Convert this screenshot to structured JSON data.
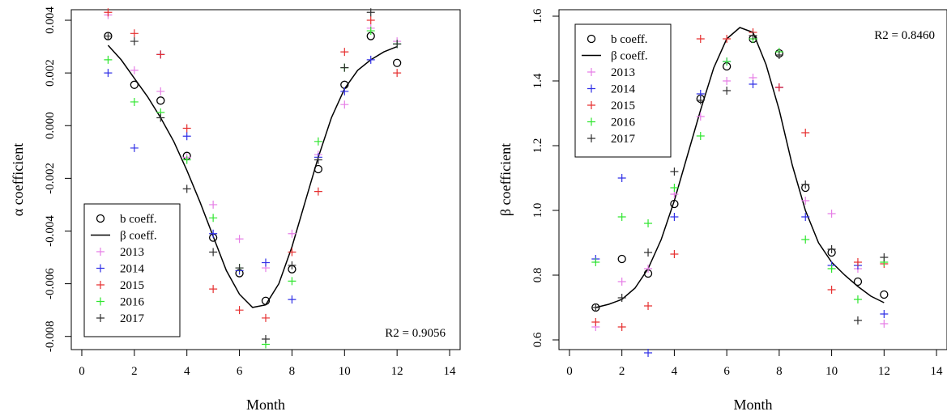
{
  "chart_data": [
    {
      "type": "scatter",
      "xlabel": "Month",
      "ylabel": "α coefficient",
      "xlim": [
        -0.4,
        14.4
      ],
      "ylim": [
        -0.0085,
        0.0044
      ],
      "x_ticks": [
        0,
        2,
        4,
        6,
        8,
        10,
        12,
        14
      ],
      "y_ticks": [
        -0.008,
        -0.006,
        -0.004,
        -0.002,
        0.0,
        0.002,
        0.004
      ],
      "y_tick_labels": [
        "-0.008",
        "-0.006",
        "-0.004",
        "-0.002",
        "0.000",
        "0.002",
        "0.004"
      ],
      "annotation": "R2 = 0.9056",
      "annotation_position": "bottom-right",
      "legend_position": "bottom-left",
      "grid": false,
      "series": [
        {
          "name": "b coeff.",
          "marker": "circle",
          "color": "#000000",
          "x": [
            1,
            2,
            3,
            4,
            5,
            6,
            7,
            8,
            9,
            10,
            11,
            12
          ],
          "y": [
            0.0034,
            0.00155,
            0.00095,
            -0.00115,
            -0.00425,
            -0.0056,
            -0.00665,
            -0.00545,
            -0.00165,
            0.00155,
            0.0034,
            0.00238
          ]
        },
        {
          "name": "β coeff.",
          "marker": "line",
          "color": "#000000",
          "x": [
            1,
            1.5,
            2,
            2.5,
            3,
            3.5,
            4,
            4.5,
            5,
            5.5,
            6,
            6.5,
            7,
            7.5,
            8,
            8.5,
            9,
            9.5,
            10,
            10.5,
            11,
            11.5,
            12
          ],
          "y": [
            0.00305,
            0.0025,
            0.0018,
            0.0011,
            0.0003,
            -0.0006,
            -0.0017,
            -0.0029,
            -0.0042,
            -0.0055,
            -0.0064,
            -0.0069,
            -0.0068,
            -0.006,
            -0.0046,
            -0.0029,
            -0.0012,
            0.0003,
            0.0014,
            0.0021,
            0.0025,
            0.0028,
            0.003
          ]
        },
        {
          "name": "2013",
          "marker": "plus",
          "color": "#e67ee6",
          "x": [
            1,
            2,
            3,
            4,
            5,
            6,
            7,
            8,
            9,
            10,
            11,
            12
          ],
          "y": [
            0.0042,
            0.0021,
            0.0013,
            -0.0012,
            -0.003,
            -0.0043,
            -0.0054,
            -0.0041,
            -0.0011,
            0.0008,
            0.0037,
            0.0032
          ]
        },
        {
          "name": "2014",
          "marker": "plus",
          "color": "#3030e6",
          "x": [
            1,
            2,
            3,
            4,
            5,
            6,
            7,
            8,
            9,
            10,
            11,
            12
          ],
          "y": [
            0.002,
            -0.00085,
            0.0027,
            -0.0004,
            -0.0041,
            -0.0055,
            -0.0052,
            -0.0066,
            -0.0012,
            0.0013,
            0.0025,
            0.0031
          ]
        },
        {
          "name": "2015",
          "marker": "plus",
          "color": "#e63030",
          "x": [
            1,
            2,
            3,
            4,
            5,
            6,
            7,
            8,
            9,
            10,
            11,
            12
          ],
          "y": [
            0.0043,
            0.0035,
            0.0027,
            -0.0001,
            -0.0062,
            -0.007,
            -0.0073,
            -0.0048,
            -0.0025,
            0.0028,
            0.004,
            0.002
          ]
        },
        {
          "name": "2016",
          "marker": "plus",
          "color": "#30e630",
          "x": [
            1,
            2,
            3,
            4,
            5,
            6,
            7,
            8,
            9,
            10,
            11,
            12
          ],
          "y": [
            0.0025,
            0.0009,
            0.0005,
            -0.0013,
            -0.0035,
            -0.0054,
            -0.0083,
            -0.0059,
            -0.0006,
            0.0022,
            0.0036,
            0.0031
          ]
        },
        {
          "name": "2017",
          "marker": "plus",
          "color": "#303030",
          "x": [
            1,
            2,
            3,
            4,
            5,
            6,
            7,
            8,
            9,
            10,
            11,
            12
          ],
          "y": [
            0.0034,
            0.0032,
            0.0003,
            -0.0024,
            -0.0048,
            -0.0054,
            -0.0081,
            -0.0053,
            -0.0013,
            0.0022,
            0.0043,
            0.0031
          ]
        }
      ]
    },
    {
      "type": "scatter",
      "xlabel": "Month",
      "ylabel": "β coefficient",
      "xlim": [
        -0.4,
        14.4
      ],
      "ylim": [
        0.57,
        1.62
      ],
      "x_ticks": [
        0,
        2,
        4,
        6,
        8,
        10,
        12,
        14
      ],
      "y_ticks": [
        0.6,
        0.8,
        1.0,
        1.2,
        1.4,
        1.6
      ],
      "y_tick_labels": [
        "0.6",
        "0.8",
        "1.0",
        "1.2",
        "1.4",
        "1.6"
      ],
      "annotation": "R2 = 0.8460",
      "annotation_position": "top-right",
      "legend_position": "top-left",
      "grid": false,
      "series": [
        {
          "name": "b coeff.",
          "marker": "circle",
          "color": "#000000",
          "x": [
            1,
            2,
            3,
            4,
            5,
            6,
            7,
            8,
            9,
            10,
            11,
            12
          ],
          "y": [
            0.7,
            0.85,
            0.805,
            1.02,
            1.345,
            1.445,
            1.53,
            1.485,
            1.07,
            0.87,
            0.78,
            0.74
          ]
        },
        {
          "name": "β coeff.",
          "marker": "line",
          "color": "#000000",
          "x": [
            1,
            1.5,
            2,
            2.5,
            3,
            3.5,
            4,
            4.5,
            5,
            5.5,
            6,
            6.5,
            7,
            7.5,
            8,
            8.5,
            9,
            9.5,
            10,
            10.5,
            11,
            11.5,
            12
          ],
          "y": [
            0.7,
            0.71,
            0.725,
            0.76,
            0.82,
            0.91,
            1.03,
            1.17,
            1.31,
            1.44,
            1.53,
            1.565,
            1.55,
            1.45,
            1.31,
            1.14,
            1.0,
            0.9,
            0.84,
            0.8,
            0.765,
            0.735,
            0.715
          ]
        },
        {
          "name": "2013",
          "marker": "plus",
          "color": "#e67ee6",
          "x": [
            1,
            2,
            3,
            4,
            5,
            6,
            7,
            8,
            9,
            10,
            11,
            12
          ],
          "y": [
            0.64,
            0.78,
            0.82,
            1.05,
            1.29,
            1.4,
            1.41,
            1.38,
            1.03,
            0.99,
            0.82,
            0.65
          ]
        },
        {
          "name": "2014",
          "marker": "plus",
          "color": "#3030e6",
          "x": [
            1,
            2,
            3,
            4,
            5,
            6,
            7,
            8,
            9,
            10,
            11,
            12
          ],
          "y": [
            0.85,
            1.1,
            0.56,
            0.98,
            1.36,
            1.46,
            1.39,
            1.38,
            0.98,
            0.83,
            0.83,
            0.68
          ]
        },
        {
          "name": "2015",
          "marker": "plus",
          "color": "#e63030",
          "x": [
            1,
            2,
            3,
            4,
            5,
            6,
            7,
            8,
            9,
            10,
            11,
            12
          ],
          "y": [
            0.655,
            0.64,
            0.705,
            0.865,
            1.53,
            1.53,
            1.55,
            1.38,
            1.24,
            0.755,
            0.84,
            0.835
          ]
        },
        {
          "name": "2016",
          "marker": "plus",
          "color": "#30e630",
          "x": [
            1,
            2,
            3,
            4,
            5,
            6,
            7,
            8,
            9,
            10,
            11,
            12
          ],
          "y": [
            0.84,
            0.98,
            0.96,
            1.07,
            1.23,
            1.46,
            1.53,
            1.49,
            0.91,
            0.82,
            0.725,
            0.84
          ]
        },
        {
          "name": "2017",
          "marker": "plus",
          "color": "#303030",
          "x": [
            1,
            2,
            3,
            4,
            5,
            6,
            7,
            8,
            9,
            10,
            11,
            12
          ],
          "y": [
            0.7,
            0.73,
            0.87,
            1.12,
            1.34,
            1.37,
            1.54,
            1.48,
            1.08,
            0.88,
            0.66,
            0.855
          ]
        }
      ]
    }
  ]
}
